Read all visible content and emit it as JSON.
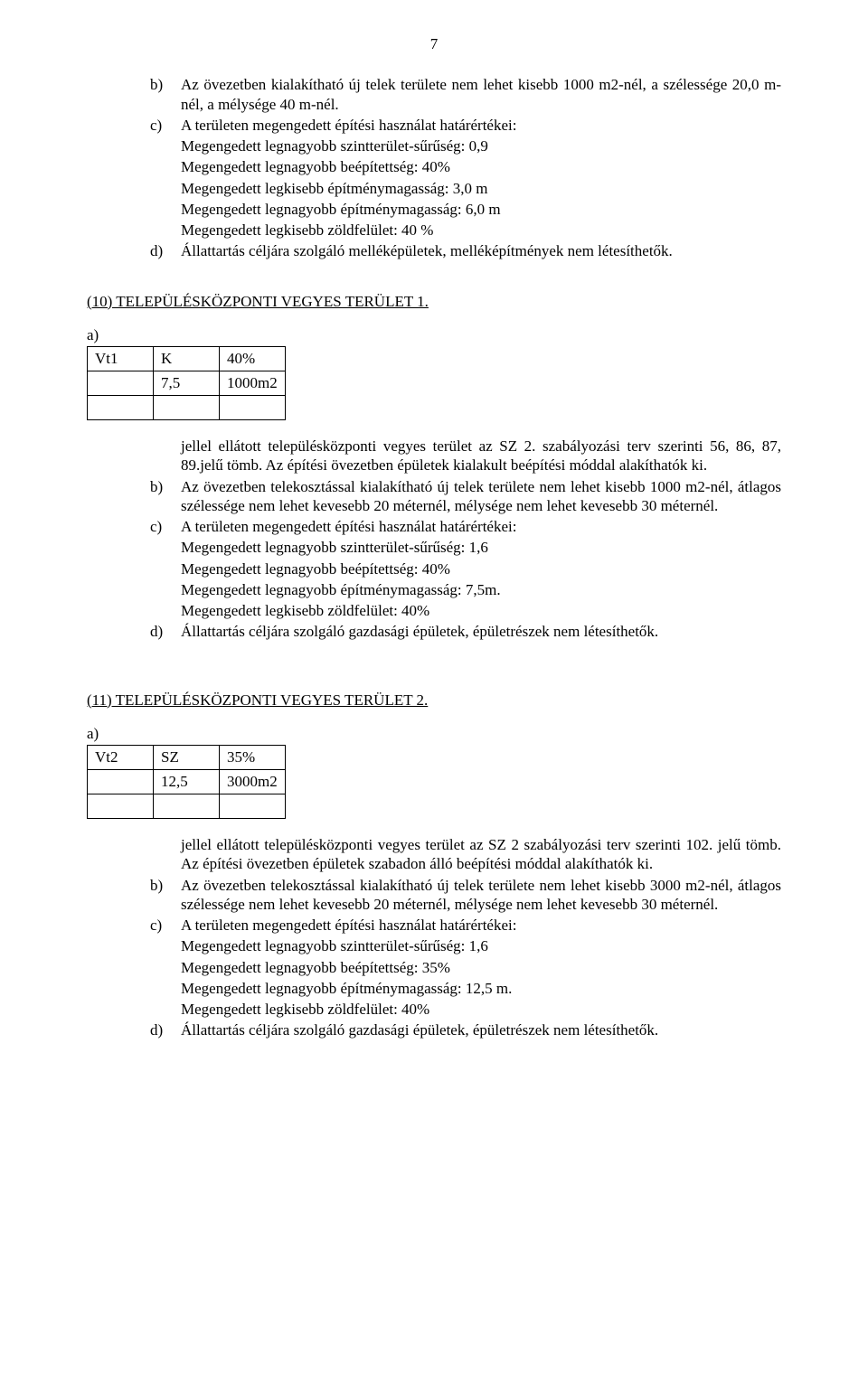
{
  "page_number": "7",
  "top_block": {
    "b": "Az övezetben kialakítható új telek területe nem lehet kisebb 1000 m2-nél, a szélessége 20,0 m-nél, a mélysége 40 m-nél.",
    "c": "A területen megengedett építési használat határértékei:",
    "c_lines": [
      "Megengedett legnagyobb szintterület-sűrűség: 0,9",
      "Megengedett legnagyobb beépítettség: 40%",
      "Megengedett legkisebb építménymagasság: 3,0 m",
      "Megengedett legnagyobb építménymagasság: 6,0 m",
      "Megengedett legkisebb zöldfelület: 40 %"
    ],
    "d": "Állattartás céljára szolgáló melléképületek, melléképítmények nem létesíthetők."
  },
  "section10": {
    "heading": "(10) TELEPÜLÉSKÖZPONTI VEGYES TERÜLET 1.",
    "a_label": "a)",
    "table": {
      "r1c1": "Vt1",
      "r1c2": "K",
      "r1c3": "40%",
      "r2c1": "",
      "r2c2": "7,5",
      "r2c3": "1000m2",
      "r3c1": "",
      "r3c2": "",
      "r3c3": ""
    },
    "para_a": "jellel ellátott településközponti vegyes terület az SZ 2. szabályozási terv szerinti 56, 86, 87, 89.jelű tömb. Az építési övezetben épületek kialakult beépítési móddal alakíthatók ki.",
    "b": "Az övezetben telekosztással kialakítható új telek területe nem lehet kisebb 1000 m2-nél, átlagos szélessége nem lehet kevesebb 20 méternél, mélysége nem lehet kevesebb 30 méternél.",
    "c": "A területen megengedett építési használat határértékei:",
    "c_lines": [
      "Megengedett legnagyobb szintterület-sűrűség: 1,6",
      "Megengedett legnagyobb beépítettség: 40%",
      "Megengedett legnagyobb építménymagasság: 7,5m.",
      "Megengedett legkisebb zöldfelület: 40%"
    ],
    "d": "Állattartás céljára szolgáló gazdasági épületek, épületrészek nem létesíthetők."
  },
  "section11": {
    "heading": "(11) TELEPÜLÉSKÖZPONTI VEGYES TERÜLET 2.",
    "a_label": "a)",
    "table": {
      "r1c1": "Vt2",
      "r1c2": "SZ",
      "r1c3": "35%",
      "r2c1": "",
      "r2c2": "12,5",
      "r2c3": "3000m2",
      "r3c1": "",
      "r3c2": "",
      "r3c3": ""
    },
    "para_a": "jellel ellátott településközponti vegyes terület az SZ 2 szabályozási terv szerinti 102. jelű tömb. Az építési övezetben épületek szabadon álló beépítési móddal alakíthatók ki.",
    "b": "Az övezetben telekosztással kialakítható új telek területe nem lehet kisebb 3000 m2-nél, átlagos szélessége nem lehet kevesebb 20 méternél, mélysége nem lehet kevesebb 30 méternél.",
    "c": "A területen megengedett építési használat határértékei:",
    "c_lines": [
      "Megengedett legnagyobb szintterület-sűrűség: 1,6",
      "Megengedett legnagyobb beépítettség: 35%",
      "Megengedett legnagyobb építménymagasság: 12,5 m.",
      "Megengedett legkisebb zöldfelület: 40%"
    ],
    "d": "Állattartás céljára szolgáló gazdasági épületek, épületrészek nem létesíthetők."
  }
}
